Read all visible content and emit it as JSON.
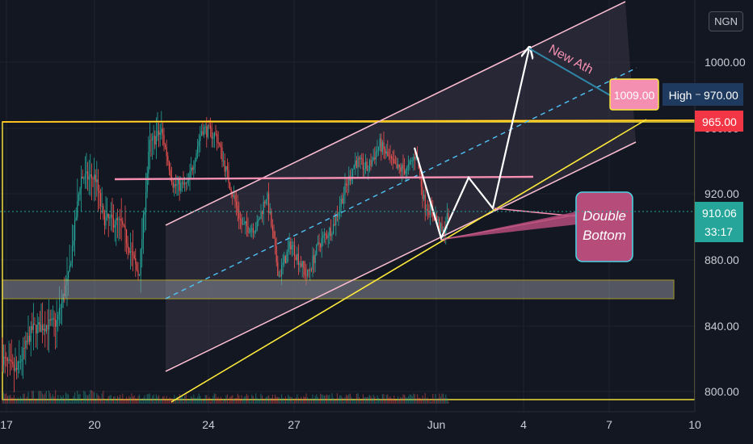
{
  "chart_data": {
    "type": "candlestick",
    "currency": "NGN",
    "ylim": [
      790,
      1080
    ],
    "y_ticks": [
      "1000.00",
      "960.00",
      "920.00",
      "880.00",
      "840.00",
      "800.00"
    ],
    "x_ticks": [
      "17",
      "20",
      "24",
      "27",
      "Jun",
      "4",
      "7",
      "10"
    ],
    "price_tags": {
      "high_label": "High",
      "high_value": "970.00",
      "resistance": "965.00",
      "last_price": "910.06",
      "countdown": "33:17"
    },
    "annotations": {
      "target_label": "1009.00",
      "new_ath": "New Ath",
      "double_bottom": [
        "Double",
        "Bottom"
      ]
    },
    "colors": {
      "up": "#26a69a",
      "down": "#ef5350",
      "channel": "#f8bbd0",
      "support": "#ffeb3b",
      "resistance_tag": "#f23645",
      "last_price_tag": "#26a69a",
      "high_tag": "#1e3a5f",
      "double_bottom_bubble": "#b54c7a"
    }
  }
}
